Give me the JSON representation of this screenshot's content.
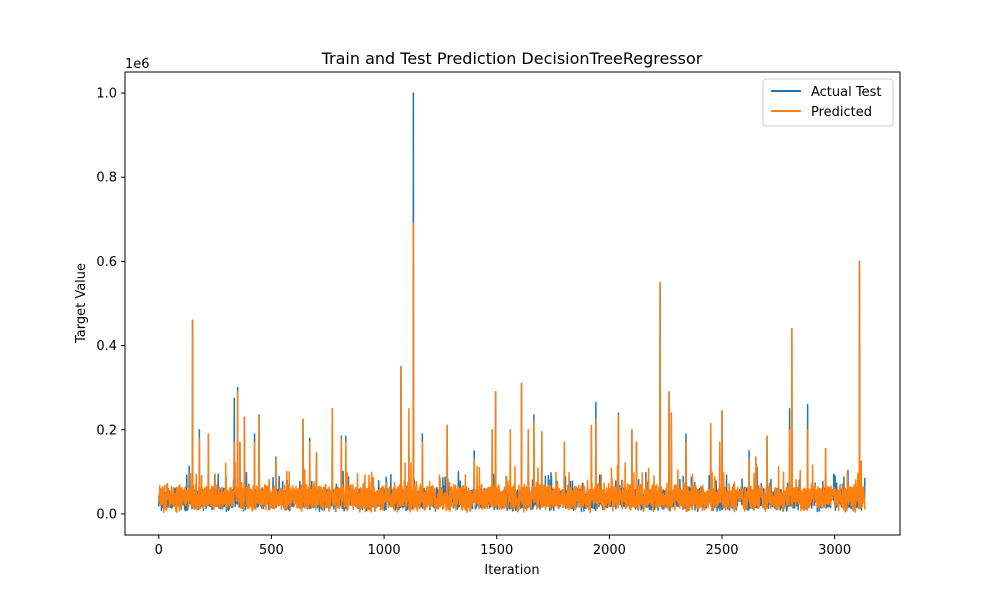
{
  "chart_data": {
    "type": "line",
    "title": "Train and Test Prediction DecisionTreeRegressor",
    "xlabel": "Iteration",
    "ylabel": "Target Value",
    "y_scale_label": "1e6",
    "xlim": [
      -150,
      3290
    ],
    "ylim": [
      -0.05,
      1.05
    ],
    "x_ticks": [
      0,
      500,
      1000,
      1500,
      2000,
      2500,
      3000
    ],
    "x_tick_labels": [
      "0",
      "500",
      "1000",
      "1500",
      "2000",
      "2500",
      "3000"
    ],
    "y_ticks": [
      0.0,
      0.2,
      0.4,
      0.6,
      0.8,
      1.0
    ],
    "y_tick_labels": [
      "0.0",
      "0.2",
      "0.4",
      "0.6",
      "0.8",
      "1.0"
    ],
    "n_points": 3135,
    "legend": {
      "position": "top-right",
      "entries": [
        "Actual Test",
        "Predicted"
      ]
    },
    "series": [
      {
        "name": "Actual Test",
        "color": "#1f77b4",
        "baseline": {
          "mean": 0.035,
          "spread": 0.03,
          "min": 0.0
        },
        "peaks": [
          {
            "x": 150,
            "y": 0.46
          },
          {
            "x": 180,
            "y": 0.2
          },
          {
            "x": 220,
            "y": 0.19
          },
          {
            "x": 335,
            "y": 0.275
          },
          {
            "x": 350,
            "y": 0.3
          },
          {
            "x": 360,
            "y": 0.17
          },
          {
            "x": 380,
            "y": 0.23
          },
          {
            "x": 425,
            "y": 0.19
          },
          {
            "x": 445,
            "y": 0.235
          },
          {
            "x": 520,
            "y": 0.135
          },
          {
            "x": 640,
            "y": 0.225
          },
          {
            "x": 670,
            "y": 0.18
          },
          {
            "x": 700,
            "y": 0.145
          },
          {
            "x": 770,
            "y": 0.25
          },
          {
            "x": 810,
            "y": 0.185
          },
          {
            "x": 830,
            "y": 0.185
          },
          {
            "x": 1075,
            "y": 0.35
          },
          {
            "x": 1110,
            "y": 0.155
          },
          {
            "x": 1130,
            "y": 1.0
          },
          {
            "x": 1170,
            "y": 0.19
          },
          {
            "x": 1280,
            "y": 0.21
          },
          {
            "x": 1400,
            "y": 0.15
          },
          {
            "x": 1480,
            "y": 0.2
          },
          {
            "x": 1495,
            "y": 0.29
          },
          {
            "x": 1560,
            "y": 0.14
          },
          {
            "x": 1610,
            "y": 0.31
          },
          {
            "x": 1640,
            "y": 0.2
          },
          {
            "x": 1665,
            "y": 0.235
          },
          {
            "x": 1700,
            "y": 0.195
          },
          {
            "x": 1800,
            "y": 0.17
          },
          {
            "x": 1920,
            "y": 0.2
          },
          {
            "x": 1940,
            "y": 0.265
          },
          {
            "x": 2040,
            "y": 0.24
          },
          {
            "x": 2100,
            "y": 0.2
          },
          {
            "x": 2120,
            "y": 0.17
          },
          {
            "x": 2225,
            "y": 0.55
          },
          {
            "x": 2265,
            "y": 0.29
          },
          {
            "x": 2275,
            "y": 0.24
          },
          {
            "x": 2340,
            "y": 0.19
          },
          {
            "x": 2450,
            "y": 0.2
          },
          {
            "x": 2490,
            "y": 0.17
          },
          {
            "x": 2500,
            "y": 0.245
          },
          {
            "x": 2620,
            "y": 0.15
          },
          {
            "x": 2650,
            "y": 0.135
          },
          {
            "x": 2700,
            "y": 0.185
          },
          {
            "x": 2800,
            "y": 0.25
          },
          {
            "x": 2810,
            "y": 0.44
          },
          {
            "x": 2880,
            "y": 0.26
          },
          {
            "x": 2960,
            "y": 0.155
          },
          {
            "x": 3110,
            "y": 0.6
          }
        ]
      },
      {
        "name": "Predicted",
        "color": "#ff7f0e",
        "baseline": {
          "mean": 0.038,
          "spread": 0.035,
          "min": 0.0
        },
        "peaks": [
          {
            "x": 150,
            "y": 0.46
          },
          {
            "x": 180,
            "y": 0.18
          },
          {
            "x": 220,
            "y": 0.19
          },
          {
            "x": 335,
            "y": 0.17
          },
          {
            "x": 350,
            "y": 0.29
          },
          {
            "x": 360,
            "y": 0.17
          },
          {
            "x": 380,
            "y": 0.23
          },
          {
            "x": 425,
            "y": 0.17
          },
          {
            "x": 445,
            "y": 0.23
          },
          {
            "x": 520,
            "y": 0.13
          },
          {
            "x": 640,
            "y": 0.225
          },
          {
            "x": 670,
            "y": 0.17
          },
          {
            "x": 700,
            "y": 0.145
          },
          {
            "x": 770,
            "y": 0.25
          },
          {
            "x": 810,
            "y": 0.18
          },
          {
            "x": 830,
            "y": 0.17
          },
          {
            "x": 1075,
            "y": 0.35
          },
          {
            "x": 1110,
            "y": 0.25
          },
          {
            "x": 1130,
            "y": 0.69
          },
          {
            "x": 1170,
            "y": 0.17
          },
          {
            "x": 1280,
            "y": 0.21
          },
          {
            "x": 1400,
            "y": 0.13
          },
          {
            "x": 1480,
            "y": 0.2
          },
          {
            "x": 1495,
            "y": 0.29
          },
          {
            "x": 1560,
            "y": 0.2
          },
          {
            "x": 1610,
            "y": 0.31
          },
          {
            "x": 1640,
            "y": 0.2
          },
          {
            "x": 1665,
            "y": 0.22
          },
          {
            "x": 1700,
            "y": 0.195
          },
          {
            "x": 1800,
            "y": 0.17
          },
          {
            "x": 1920,
            "y": 0.21
          },
          {
            "x": 1940,
            "y": 0.225
          },
          {
            "x": 2040,
            "y": 0.235
          },
          {
            "x": 2100,
            "y": 0.2
          },
          {
            "x": 2120,
            "y": 0.17
          },
          {
            "x": 2225,
            "y": 0.55
          },
          {
            "x": 2265,
            "y": 0.29
          },
          {
            "x": 2275,
            "y": 0.24
          },
          {
            "x": 2340,
            "y": 0.17
          },
          {
            "x": 2450,
            "y": 0.215
          },
          {
            "x": 2490,
            "y": 0.17
          },
          {
            "x": 2500,
            "y": 0.245
          },
          {
            "x": 2620,
            "y": 0.13
          },
          {
            "x": 2650,
            "y": 0.135
          },
          {
            "x": 2700,
            "y": 0.185
          },
          {
            "x": 2800,
            "y": 0.2
          },
          {
            "x": 2810,
            "y": 0.44
          },
          {
            "x": 2880,
            "y": 0.2
          },
          {
            "x": 2960,
            "y": 0.155
          },
          {
            "x": 3110,
            "y": 0.6
          }
        ]
      }
    ]
  }
}
